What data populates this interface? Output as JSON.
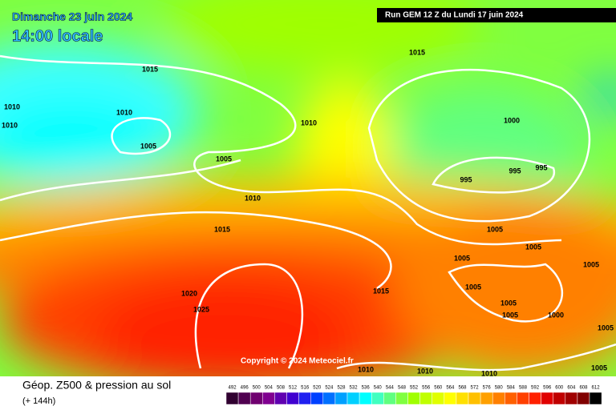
{
  "header": {
    "date": "Dimanche 23 juin 2024",
    "time": "14:00 locale",
    "run": "Run GEM 12 Z du Lundi 17 juin 2024"
  },
  "isobar_labels": [
    "1015",
    "1015",
    "1010",
    "1010",
    "1010",
    "1005",
    "1010",
    "1000",
    "1005",
    "995",
    "995",
    "995",
    "1010",
    "1015",
    "1005",
    "1005",
    "1005",
    "1005",
    "1005",
    "1015",
    "1020",
    "1025",
    "1005",
    "1005",
    "1000",
    "1005",
    "1010",
    "1010",
    "1010",
    "1005"
  ],
  "copyright": "Copyright © 2024 Meteociel.fr",
  "footer": {
    "title": "Géop. Z500 & pression au sol",
    "lead": "(+ 144h)"
  },
  "scale": {
    "labels": [
      492,
      496,
      500,
      504,
      508,
      512,
      516,
      520,
      524,
      528,
      532,
      536,
      540,
      544,
      548,
      552,
      556,
      560,
      564,
      568,
      572,
      576,
      580,
      584,
      588,
      592,
      596,
      600,
      604,
      608,
      612
    ],
    "colors": [
      "#300030",
      "#500050",
      "#700070",
      "#800090",
      "#6000b0",
      "#4000d0",
      "#2020f0",
      "#0040ff",
      "#0070ff",
      "#00a0ff",
      "#00d0ff",
      "#00ffff",
      "#40ffc0",
      "#60ff80",
      "#80ff40",
      "#a0ff00",
      "#c0ff00",
      "#e0ff00",
      "#ffff00",
      "#ffe000",
      "#ffc000",
      "#ffa000",
      "#ff8000",
      "#ff6000",
      "#ff4000",
      "#ff2000",
      "#e00000",
      "#c00000",
      "#a00000",
      "#800000",
      "#000000"
    ]
  }
}
